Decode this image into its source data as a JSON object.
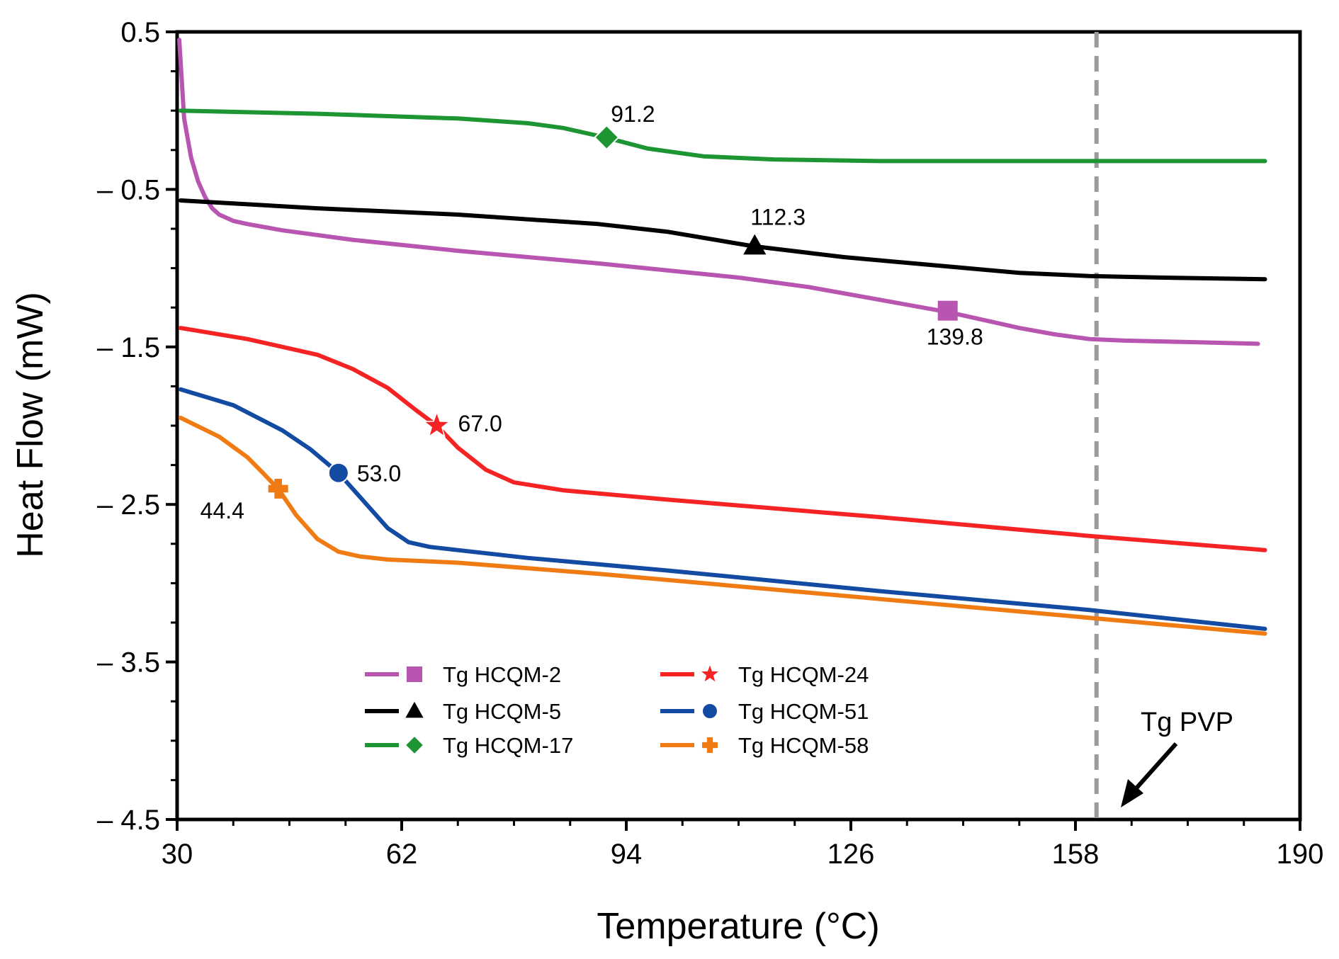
{
  "chart_data": {
    "type": "line",
    "title": "",
    "xlabel": "Temperature (°C)",
    "ylabel": "Heat Flow (mW)",
    "xlim": [
      30,
      190
    ],
    "ylim": [
      -4.5,
      0.5
    ],
    "xticks": [
      30,
      62,
      94,
      126,
      158,
      190
    ],
    "yticks": [
      0.5,
      -0.5,
      -1.5,
      -2.5,
      -3.5,
      -4.5
    ],
    "xtick_labels": [
      "30",
      "62",
      "94",
      "126",
      "158",
      "190"
    ],
    "ytick_labels": [
      "0.5",
      "– 0.5",
      "– 1.5",
      "– 2.5",
      "– 3.5",
      "– 4.5"
    ],
    "grid": false,
    "legend_position": "bottom-center",
    "series": [
      {
        "name": "Tg HCQM-2",
        "color": "#b855b0",
        "marker": "square",
        "tg": 139.8,
        "tg_y": -1.27,
        "label": "139.8",
        "x": [
          30.3,
          31,
          32,
          33,
          34,
          35,
          36,
          38,
          40,
          45,
          55,
          70,
          90,
          110,
          120,
          130,
          140,
          150,
          155,
          160,
          165,
          175,
          184
        ],
        "y": [
          0.45,
          -0.05,
          -0.3,
          -0.45,
          -0.55,
          -0.62,
          -0.66,
          -0.7,
          -0.72,
          -0.76,
          -0.82,
          -0.89,
          -0.97,
          -1.06,
          -1.12,
          -1.2,
          -1.28,
          -1.38,
          -1.42,
          -1.45,
          -1.46,
          -1.47,
          -1.48
        ]
      },
      {
        "name": "Tg HCQM-5",
        "color": "#000000",
        "marker": "triangle",
        "tg": 112.3,
        "tg_y": -0.86,
        "label": "112.3",
        "x": [
          30.5,
          50,
          70,
          90,
          100,
          112,
          125,
          140,
          150,
          160,
          170,
          185
        ],
        "y": [
          -0.57,
          -0.62,
          -0.66,
          -0.72,
          -0.77,
          -0.86,
          -0.93,
          -0.99,
          -1.03,
          -1.05,
          -1.06,
          -1.07
        ]
      },
      {
        "name": "Tg HCQM-17",
        "color": "#1d9532",
        "marker": "diamond",
        "tg": 91.2,
        "tg_y": -0.17,
        "label": "91.2",
        "x": [
          30.5,
          50,
          70,
          80,
          85,
          91,
          97,
          105,
          115,
          130,
          150,
          185
        ],
        "y": [
          0.0,
          -0.02,
          -0.05,
          -0.08,
          -0.11,
          -0.17,
          -0.24,
          -0.29,
          -0.31,
          -0.32,
          -0.32,
          -0.32
        ]
      },
      {
        "name": "Tg HCQM-24",
        "color": "#f52323",
        "marker": "star",
        "tg": 67.0,
        "tg_y": -2.0,
        "label": "67.0",
        "x": [
          30.5,
          40,
          50,
          55,
          60,
          64,
          67,
          70,
          74,
          78,
          85,
          100,
          130,
          160,
          185
        ],
        "y": [
          -1.38,
          -1.45,
          -1.55,
          -1.64,
          -1.76,
          -1.9,
          -2.0,
          -2.14,
          -2.28,
          -2.36,
          -2.41,
          -2.47,
          -2.58,
          -2.7,
          -2.79
        ]
      },
      {
        "name": "Tg HCQM-51",
        "color": "#134ba3",
        "marker": "circle",
        "tg": 53.0,
        "tg_y": -2.3,
        "label": "53.0",
        "x": [
          30.5,
          38,
          45,
          49,
          53,
          57,
          60,
          63,
          66,
          70,
          80,
          100,
          130,
          160,
          185
        ],
        "y": [
          -1.77,
          -1.87,
          -2.03,
          -2.15,
          -2.3,
          -2.5,
          -2.65,
          -2.74,
          -2.77,
          -2.79,
          -2.84,
          -2.92,
          -3.05,
          -3.17,
          -3.29
        ]
      },
      {
        "name": "Tg HCQM-58",
        "color": "#f07b12",
        "marker": "plus",
        "tg": 44.4,
        "tg_y": -2.4,
        "label": "44.4",
        "x": [
          30.5,
          36,
          40,
          42,
          44.4,
          47,
          50,
          53,
          56,
          60,
          70,
          90,
          120,
          150,
          185
        ],
        "y": [
          -1.95,
          -2.07,
          -2.2,
          -2.29,
          -2.4,
          -2.57,
          -2.72,
          -2.8,
          -2.83,
          -2.85,
          -2.87,
          -2.94,
          -3.06,
          -3.18,
          -3.32
        ]
      }
    ],
    "vline": {
      "x": 161,
      "label": "Tg PVP",
      "color": "#9b9b9b"
    }
  }
}
